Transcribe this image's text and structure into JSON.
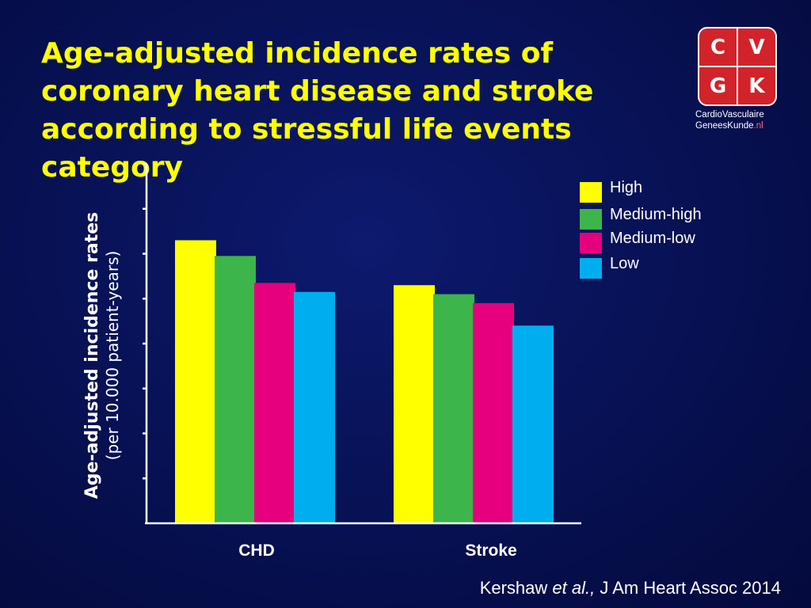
{
  "slide": {
    "title_lines": [
      "Age-adjusted incidence rates of",
      "coronary heart disease and stroke",
      "according to stressful life events",
      "category"
    ]
  },
  "logo": {
    "letters": [
      "C",
      "V",
      "G",
      "K"
    ],
    "line1": "CardioVasculaire",
    "line2_main": "GeneesKunde",
    "line2_suffix": ".nl"
  },
  "citation": {
    "author": "Kershaw ",
    "etal": "et al.,",
    "journal": " J Am Heart Assoc 2014"
  },
  "chart_data": {
    "type": "bar",
    "title": "Age-adjusted incidence rates of coronary heart disease and stroke according to stressful life events category",
    "ylabel": "Age-adjusted incidence rates",
    "ylabel_sub": "(per 10.000 patient-years)",
    "xlabel": "",
    "categories": [
      "CHD",
      "Stroke"
    ],
    "series": [
      {
        "name": "High",
        "color": "#ffff00",
        "values": [
          6.3,
          5.3
        ]
      },
      {
        "name": "Medium-high",
        "color": "#3cb54a",
        "values": [
          5.95,
          5.1
        ]
      },
      {
        "name": "Medium-low",
        "color": "#e6007e",
        "values": [
          5.35,
          4.9
        ]
      },
      {
        "name": "Low",
        "color": "#00aeef",
        "values": [
          5.15,
          4.4
        ]
      }
    ],
    "ylim": [
      0,
      8
    ],
    "y_ticks_count": 8,
    "y_tick_labels": "none",
    "grid": false,
    "legend": "top-right"
  }
}
